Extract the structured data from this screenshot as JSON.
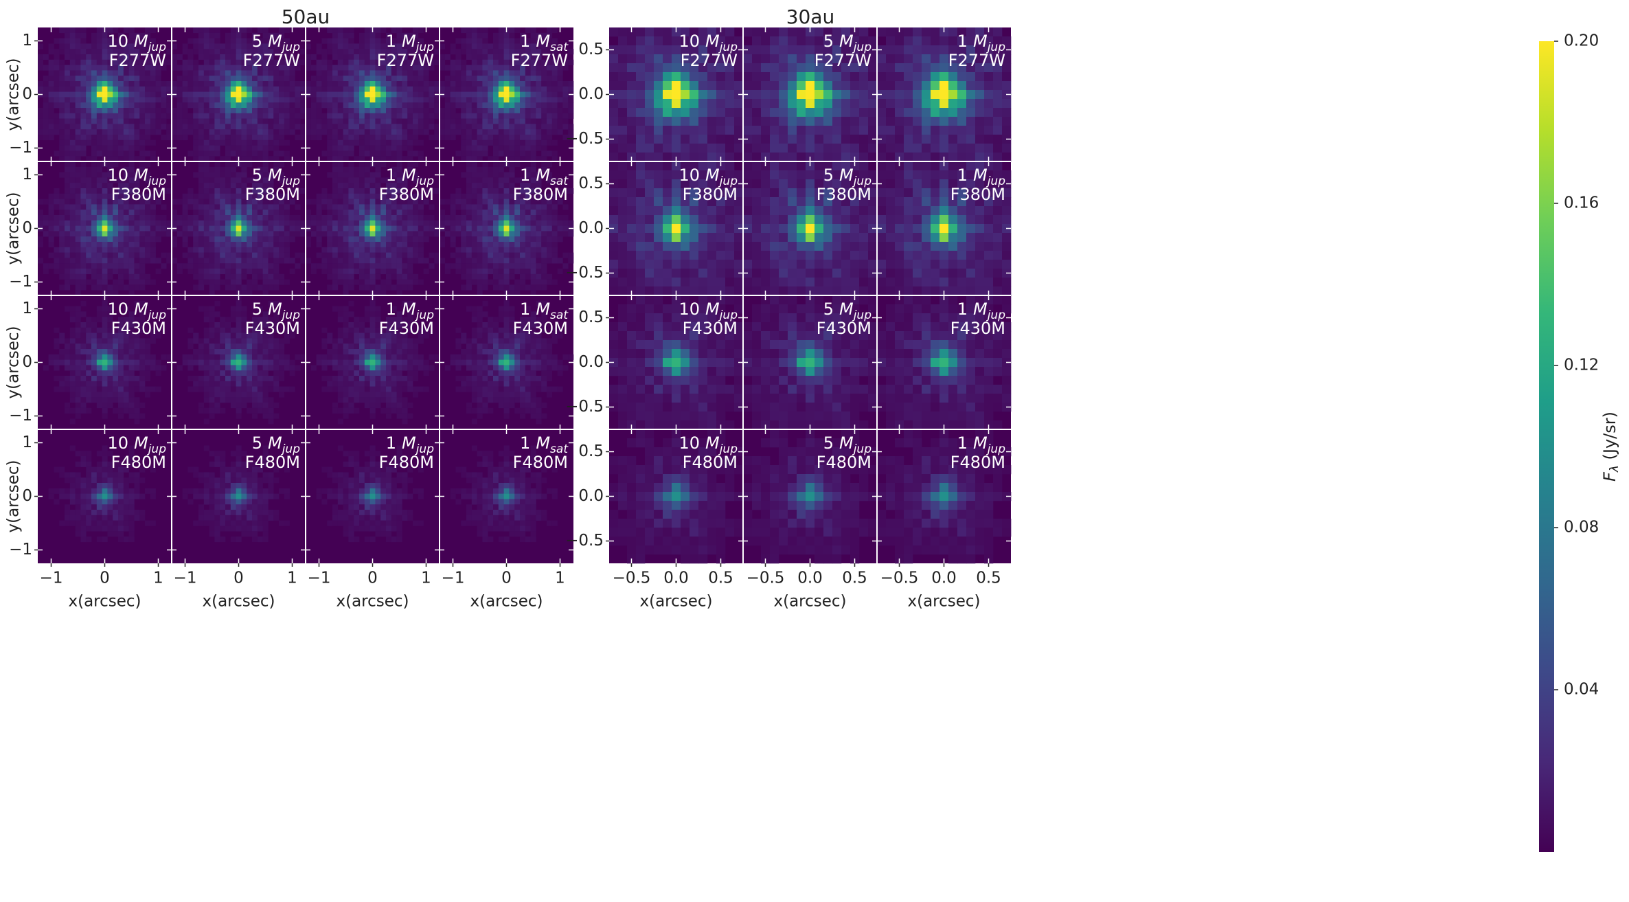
{
  "chart_data": [
    {
      "type": "heatmap",
      "title": "50au",
      "xlabel": "x(arcsec)",
      "ylabel": "y(arcsec)",
      "xlim": [
        -1.25,
        1.25
      ],
      "ylim": [
        -1.25,
        1.25
      ],
      "xticks": [
        {
          "v": -1,
          "label": "−1"
        },
        {
          "v": 0,
          "label": "0"
        },
        {
          "v": 1,
          "label": "1"
        }
      ],
      "yticks": [
        {
          "v": 1,
          "label": "1"
        },
        {
          "v": 0,
          "label": "0"
        },
        {
          "v": -1,
          "label": "−1"
        }
      ],
      "grid_cells": 25,
      "cell_arcsec": 0.1,
      "columns": [
        {
          "mass": "10",
          "unit": "jup"
        },
        {
          "mass": "5",
          "unit": "jup"
        },
        {
          "mass": "1",
          "unit": "jup"
        },
        {
          "mass": "1",
          "unit": "sat"
        }
      ],
      "rows": [
        {
          "filter": "F277W",
          "peak_flux": 0.2
        },
        {
          "filter": "F380M",
          "peak_flux": 0.19
        },
        {
          "filter": "F430M",
          "peak_flux": 0.13
        },
        {
          "filter": "F480M",
          "peak_flux": 0.1
        }
      ]
    },
    {
      "type": "heatmap",
      "title": "30au",
      "xlabel": "x(arcsec)",
      "ylabel": "",
      "xlim": [
        -0.75,
        0.75
      ],
      "ylim": [
        -0.75,
        0.75
      ],
      "xticks": [
        {
          "v": -0.5,
          "label": "−0.5"
        },
        {
          "v": 0,
          "label": "0.0"
        },
        {
          "v": 0.5,
          "label": "0.5"
        }
      ],
      "yticks": [
        {
          "v": 0.5,
          "label": "0.5"
        },
        {
          "v": 0,
          "label": "0.0"
        },
        {
          "v": -0.5,
          "label": "−0.5"
        }
      ],
      "grid_cells": 15,
      "cell_arcsec": 0.1,
      "columns": [
        {
          "mass": "10",
          "unit": "jup"
        },
        {
          "mass": "5",
          "unit": "jup"
        },
        {
          "mass": "1",
          "unit": "jup"
        }
      ],
      "rows": [
        {
          "filter": "F277W",
          "peak_flux": 0.2
        },
        {
          "filter": "F380M",
          "peak_flux": 0.2
        },
        {
          "filter": "F430M",
          "peak_flux": 0.13
        },
        {
          "filter": "F480M",
          "peak_flux": 0.1
        }
      ]
    }
  ],
  "colorbar": {
    "label_main": "F",
    "label_sub": "λ",
    "label_units": " (Jy/sr)",
    "range": [
      0.0,
      0.2
    ],
    "ticks": [
      {
        "v": 0.2,
        "label": "0.20"
      },
      {
        "v": 0.16,
        "label": "0.16"
      },
      {
        "v": 0.12,
        "label": "0.12"
      },
      {
        "v": 0.08,
        "label": "0.08"
      },
      {
        "v": 0.04,
        "label": "0.04"
      }
    ],
    "colormap": [
      "#440154",
      "#482878",
      "#3e4989",
      "#31688e",
      "#26828e",
      "#1f9e89",
      "#35b779",
      "#6ece58",
      "#b5de2b",
      "#fde725"
    ]
  },
  "mass_symbol": "M"
}
